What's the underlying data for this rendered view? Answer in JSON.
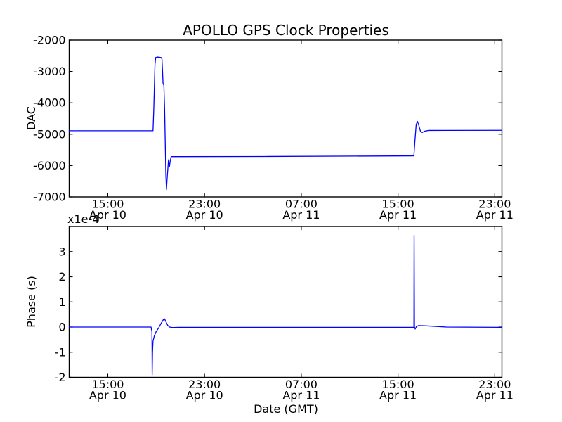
{
  "figure": {
    "title": "APOLLO GPS Clock Properties",
    "xlabel": "Date (GMT)",
    "background_color": "#ffffff",
    "frame_color": "#000000",
    "line_color": "#0000ff"
  },
  "chart_data": [
    {
      "type": "line",
      "subplot": "top",
      "title": "APOLLO GPS Clock Properties",
      "ylabel": "DAC",
      "ylim": [
        -7000,
        -2000
      ],
      "yticks": [
        -2000,
        -3000,
        -4000,
        -5000,
        -6000,
        -7000
      ],
      "grid": false,
      "legend": null,
      "x_unit": "hours since Apr 10 00:00 (GMT)",
      "xlim": [
        11.81,
        47.59
      ],
      "xticks": [
        15,
        23,
        31,
        39,
        47
      ],
      "xtick_labels": [
        [
          "15:00",
          "Apr 10"
        ],
        [
          "23:00",
          "Apr 10"
        ],
        [
          "07:00",
          "Apr 11"
        ],
        [
          "15:00",
          "Apr 11"
        ],
        [
          "23:00",
          "Apr 11"
        ]
      ],
      "series": [
        {
          "name": "DAC",
          "color": "#0000ff",
          "points": [
            [
              11.81,
              -4890
            ],
            [
              18.74,
              -4890
            ],
            [
              18.8,
              -4250
            ],
            [
              18.9,
              -2800
            ],
            [
              18.96,
              -2555
            ],
            [
              19.1,
              -2540
            ],
            [
              19.4,
              -2555
            ],
            [
              19.48,
              -2600
            ],
            [
              19.53,
              -3000
            ],
            [
              19.57,
              -3380
            ],
            [
              19.64,
              -3440
            ],
            [
              19.7,
              -4200
            ],
            [
              19.8,
              -6300
            ],
            [
              19.85,
              -6760
            ],
            [
              19.92,
              -6350
            ],
            [
              20.02,
              -5815
            ],
            [
              20.1,
              -6030
            ],
            [
              20.16,
              -5860
            ],
            [
              20.24,
              -5715
            ],
            [
              28.0,
              -5710
            ],
            [
              40.31,
              -5690
            ],
            [
              40.4,
              -5200
            ],
            [
              40.5,
              -4700
            ],
            [
              40.6,
              -4590
            ],
            [
              40.72,
              -4720
            ],
            [
              40.85,
              -4900
            ],
            [
              41.0,
              -4945
            ],
            [
              41.2,
              -4905
            ],
            [
              41.5,
              -4880
            ],
            [
              47.59,
              -4875
            ]
          ]
        }
      ]
    },
    {
      "type": "line",
      "subplot": "bottom",
      "ylabel": "Phase (s)",
      "y_offset_text": "x1e-4",
      "y_multiplier": 0.0001,
      "xlabel": "Date (GMT)",
      "ylim": [
        -2,
        4
      ],
      "yticks": [
        3,
        2,
        1,
        0,
        -1,
        -2
      ],
      "grid": false,
      "legend": null,
      "x_unit": "hours since Apr 10 00:00 (GMT)",
      "xlim": [
        11.81,
        47.59
      ],
      "xticks": [
        15,
        23,
        31,
        39,
        47
      ],
      "xtick_labels": [
        [
          "15:00",
          "Apr 10"
        ],
        [
          "23:00",
          "Apr 10"
        ],
        [
          "07:00",
          "Apr 11"
        ],
        [
          "15:00",
          "Apr 11"
        ],
        [
          "23:00",
          "Apr 11"
        ]
      ],
      "series": [
        {
          "name": "Phase",
          "color": "#0000ff",
          "points": [
            [
              11.81,
              0
            ],
            [
              18.58,
              0
            ],
            [
              18.62,
              -0.12
            ],
            [
              18.65,
              -0.12
            ],
            [
              18.67,
              -1.9
            ],
            [
              18.7,
              -1.0
            ],
            [
              18.74,
              -0.56
            ],
            [
              18.85,
              -0.35
            ],
            [
              19.0,
              -0.18
            ],
            [
              19.2,
              -0.04
            ],
            [
              19.4,
              0.14
            ],
            [
              19.6,
              0.3
            ],
            [
              19.69,
              0.33
            ],
            [
              19.8,
              0.22
            ],
            [
              19.95,
              0.07
            ],
            [
              20.1,
              0.0
            ],
            [
              20.4,
              -0.02
            ],
            [
              21.0,
              -0.01
            ],
            [
              40.28,
              -0.01
            ],
            [
              40.31,
              0.0
            ],
            [
              40.33,
              3.65
            ],
            [
              40.36,
              0.0
            ],
            [
              40.42,
              -0.08
            ],
            [
              40.52,
              0.02
            ],
            [
              40.7,
              0.06
            ],
            [
              41.2,
              0.05
            ],
            [
              42.0,
              0.03
            ],
            [
              43.0,
              0.0
            ],
            [
              47.59,
              -0.01
            ]
          ]
        }
      ]
    }
  ]
}
